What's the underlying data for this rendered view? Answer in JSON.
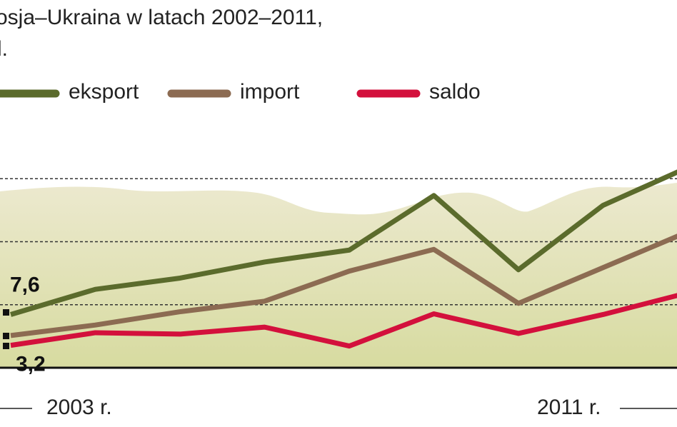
{
  "chart_data": {
    "type": "line",
    "title": "osja–Ukraina w latach 2002–2011,",
    "subtitle": "l.",
    "categories": [
      null,
      "2003 r.",
      null,
      null,
      null,
      null,
      null,
      "2011 r.",
      null
    ],
    "series": [
      {
        "name": "eksport",
        "color": "#5b6b2c",
        "values": [
          7.6,
          11.2,
          12.8,
          15.1,
          16.8,
          24.6,
          14.0,
          23.2,
          28.6
        ],
        "value_labels": [
          "7,6",
          null,
          null,
          null,
          null,
          null,
          null,
          null,
          null
        ]
      },
      {
        "name": "import",
        "color": "#8c6b52",
        "values": [
          4.6,
          6.1,
          8.0,
          9.5,
          13.8,
          16.9,
          9.2,
          14.3,
          19.4
        ]
      },
      {
        "name": "saldo",
        "color": "#d3103c",
        "values": [
          3.2,
          5.0,
          4.8,
          5.8,
          3.1,
          7.7,
          4.9,
          7.6,
          10.7
        ],
        "value_labels": [
          "3,2",
          null,
          null,
          null,
          null,
          null,
          null,
          null,
          null
        ]
      }
    ],
    "ylim": [
      0,
      36
    ],
    "grid_values": [
      9,
      18,
      27
    ]
  }
}
